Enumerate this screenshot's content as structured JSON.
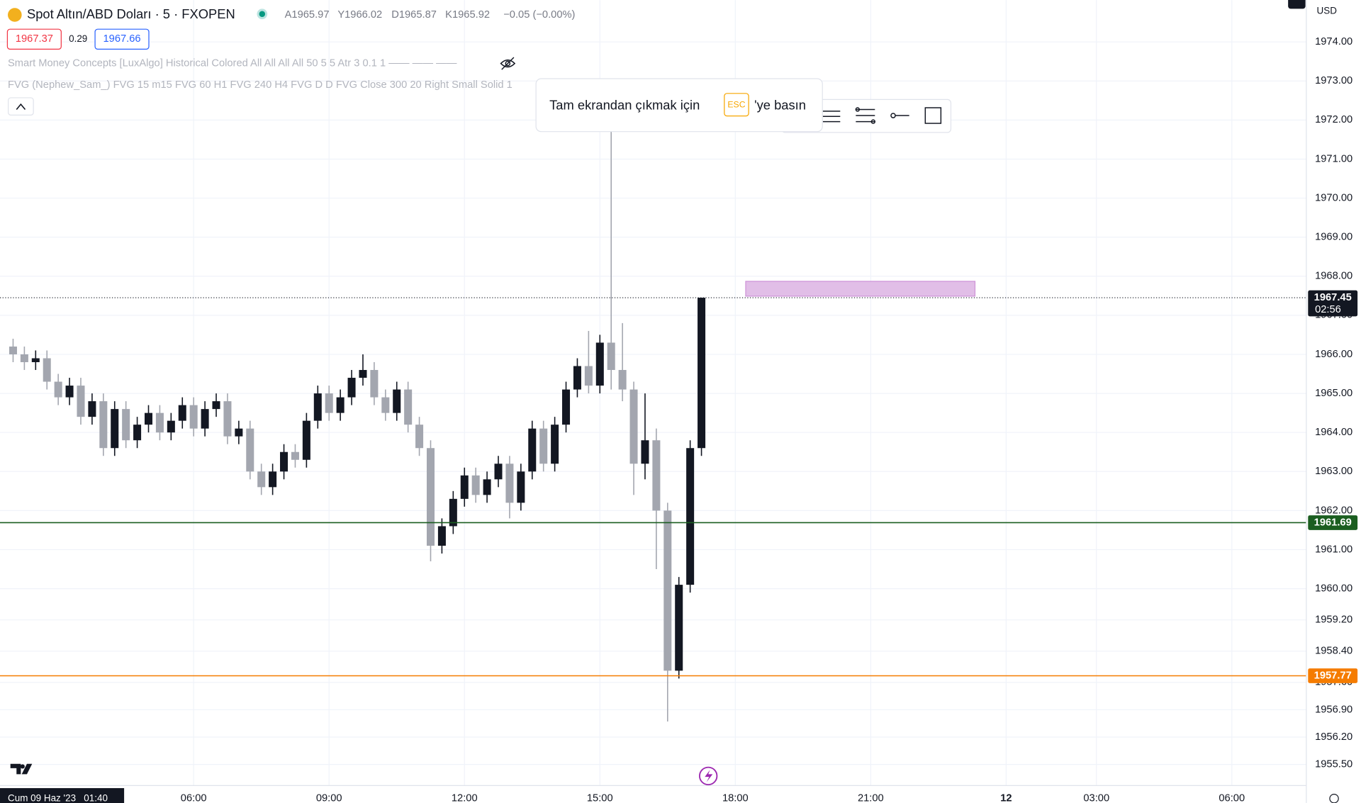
{
  "header": {
    "symbol": "Spot Altın/ABD Doları · 5 · FXOPEN",
    "ohlc": [
      "A1965.97",
      "Y1966.02",
      "D1965.87",
      "K1965.92",
      "−0.05 (−0.00%)"
    ],
    "sell": "1967.37",
    "spread": "0.29",
    "buy": "1967.66",
    "indicators": [
      "Smart Money Concepts [LuxAlgo] Historical Colored All All All All 50 5 5 Atr 3 0.1 1 —— —— ——",
      "FVG (Nephew_Sam_) FVG 15 m15 FVG 60 H1 FVG 240 H4 FVG D D FVG Close 300 20 Right Small Solid 1"
    ],
    "currency": "USD"
  },
  "tooltip": {
    "before": "Tam ekrandan çıkmak için",
    "key": "ESC",
    "after": "'ye basın"
  },
  "footer": {
    "cursor_time": "Cum 09 Haz '23   01:40"
  },
  "chart_data": {
    "type": "candlestick",
    "up_color": "#131722",
    "down_color": "#a3a6af",
    "x": [
      2,
      2.25,
      2.5,
      2.75,
      3,
      3.25,
      3.5,
      3.75,
      4,
      4.25,
      4.5,
      4.75,
      5,
      5.25,
      5.5,
      5.75,
      6,
      6.25,
      6.5,
      6.75,
      7,
      7.25,
      7.5,
      7.75,
      8,
      8.25,
      8.5,
      8.75,
      9,
      9.25,
      9.5,
      9.75,
      10,
      10.25,
      10.5,
      10.75,
      11,
      11.25,
      11.5,
      11.75,
      12,
      12.25,
      12.5,
      12.75,
      13,
      13.25,
      13.5,
      13.75,
      14,
      14.25,
      14.5,
      14.75,
      15,
      15.25,
      15.5,
      15.75,
      16,
      16.25,
      16.5,
      16.75,
      17,
      17.25
    ],
    "open": [
      1966.2,
      1966.0,
      1965.8,
      1965.9,
      1965.3,
      1964.9,
      1965.2,
      1964.4,
      1964.8,
      1963.6,
      1964.6,
      1963.8,
      1964.2,
      1964.5,
      1964.0,
      1964.3,
      1964.7,
      1964.1,
      1964.6,
      1964.8,
      1963.9,
      1964.1,
      1963.0,
      1962.6,
      1963.0,
      1963.5,
      1963.3,
      1964.3,
      1965.0,
      1964.5,
      1964.9,
      1965.4,
      1965.6,
      1964.9,
      1964.5,
      1965.1,
      1964.2,
      1963.6,
      1961.1,
      1961.6,
      1962.3,
      1962.9,
      1962.4,
      1962.8,
      1963.2,
      1962.2,
      1963.0,
      1964.1,
      1963.2,
      1964.2,
      1965.1,
      1965.7,
      1965.2,
      1966.3,
      1965.6,
      1965.1,
      1963.2,
      1963.8,
      1962.0,
      1957.9,
      1960.1,
      1963.6
    ],
    "high": [
      1966.4,
      1966.2,
      1966.1,
      1966.1,
      1965.5,
      1965.4,
      1965.4,
      1965.0,
      1965.0,
      1964.8,
      1964.8,
      1964.4,
      1964.7,
      1964.7,
      1964.5,
      1964.9,
      1964.9,
      1964.8,
      1965.0,
      1965.0,
      1964.3,
      1964.3,
      1963.2,
      1963.2,
      1963.7,
      1963.7,
      1964.5,
      1965.2,
      1965.2,
      1965.1,
      1965.6,
      1966.0,
      1965.8,
      1965.1,
      1965.3,
      1965.3,
      1964.4,
      1963.8,
      1961.8,
      1962.5,
      1963.1,
      1963.1,
      1963.0,
      1963.4,
      1963.4,
      1963.2,
      1964.3,
      1964.3,
      1964.4,
      1965.3,
      1965.9,
      1966.6,
      1966.5,
      1971.8,
      1966.8,
      1965.3,
      1965.0,
      1964.1,
      1962.2,
      1960.3,
      1963.8,
      1967.45
    ],
    "low": [
      1965.8,
      1965.6,
      1965.6,
      1965.1,
      1964.7,
      1964.7,
      1964.2,
      1964.2,
      1963.4,
      1963.4,
      1963.6,
      1963.6,
      1964.0,
      1963.8,
      1963.8,
      1964.1,
      1963.9,
      1963.9,
      1964.4,
      1963.7,
      1963.7,
      1962.8,
      1962.4,
      1962.4,
      1962.8,
      1963.1,
      1963.1,
      1964.1,
      1964.3,
      1964.3,
      1964.7,
      1965.2,
      1964.7,
      1964.3,
      1964.3,
      1964.0,
      1963.4,
      1960.7,
      1960.9,
      1961.4,
      1962.1,
      1962.2,
      1962.2,
      1962.6,
      1961.8,
      1962.0,
      1962.8,
      1963.0,
      1963.0,
      1964.0,
      1964.9,
      1965.0,
      1965.0,
      1965.1,
      1964.8,
      1962.4,
      1962.8,
      1960.5,
      1956.6,
      1957.7,
      1959.9,
      1963.4
    ],
    "close": [
      1966.0,
      1965.8,
      1965.9,
      1965.3,
      1964.9,
      1965.2,
      1964.4,
      1964.8,
      1963.6,
      1964.6,
      1963.8,
      1964.2,
      1964.5,
      1964.0,
      1964.3,
      1964.7,
      1964.1,
      1964.6,
      1964.8,
      1963.9,
      1964.1,
      1963.0,
      1962.6,
      1963.0,
      1963.5,
      1963.3,
      1964.3,
      1965.0,
      1964.5,
      1964.9,
      1965.4,
      1965.6,
      1964.9,
      1964.5,
      1965.1,
      1964.2,
      1963.6,
      1961.1,
      1961.6,
      1962.3,
      1962.9,
      1962.4,
      1962.8,
      1963.2,
      1962.2,
      1963.0,
      1964.1,
      1963.2,
      1964.2,
      1965.1,
      1965.7,
      1965.2,
      1966.3,
      1965.6,
      1965.1,
      1963.2,
      1963.8,
      1962.0,
      1957.9,
      1960.1,
      1963.6,
      1967.45
    ],
    "xlim": [
      1.71,
      30.65
    ],
    "ylim": [
      1954.96,
      1975.07
    ],
    "xticks": [
      {
        "value": 6,
        "label": "06:00"
      },
      {
        "value": 9,
        "label": "09:00"
      },
      {
        "value": 12,
        "label": "12:00"
      },
      {
        "value": 15,
        "label": "15:00"
      },
      {
        "value": 18,
        "label": "18:00"
      },
      {
        "value": 21,
        "label": "21:00"
      },
      {
        "value": 24,
        "label": "12"
      },
      {
        "value": 26,
        "label": "03:00"
      },
      {
        "value": 29,
        "label": "06:00"
      }
    ],
    "yticks": [
      {
        "value": 1974,
        "label": "1974.00"
      },
      {
        "value": 1973,
        "label": "1973.00"
      },
      {
        "value": 1972,
        "label": "1972.00"
      },
      {
        "value": 1971,
        "label": "1971.00"
      },
      {
        "value": 1970,
        "label": "1970.00"
      },
      {
        "value": 1969,
        "label": "1969.00"
      },
      {
        "value": 1968,
        "label": "1968.00"
      },
      {
        "value": 1967,
        "label": "1967.00"
      },
      {
        "value": 1966,
        "label": "1966.00"
      },
      {
        "value": 1965,
        "label": "1965.00"
      },
      {
        "value": 1964,
        "label": "1964.00"
      },
      {
        "value": 1963,
        "label": "1963.00"
      },
      {
        "value": 1962,
        "label": "1962.00"
      },
      {
        "value": 1961,
        "label": "1961.00"
      },
      {
        "value": 1960,
        "label": "1960.00"
      },
      {
        "value": 1959.2,
        "label": "1959.20"
      },
      {
        "value": 1958.4,
        "label": "1958.40"
      },
      {
        "value": 1957.6,
        "label": "1957.60"
      },
      {
        "value": 1956.9,
        "label": "1956.90"
      },
      {
        "value": 1956.2,
        "label": "1956.20"
      },
      {
        "value": 1955.5,
        "label": "1955.50"
      }
    ],
    "grid": true,
    "price_lines": [
      {
        "value": 1967.45,
        "color": "#131722",
        "style": "dotted",
        "countdown": "02:56"
      },
      {
        "value": 1961.69,
        "color": "#1b5e20",
        "style": "solid"
      },
      {
        "value": 1957.77,
        "color": "#f57c00",
        "style": "solid"
      }
    ],
    "zones": [
      {
        "x": [
          18.23,
          23.31
        ],
        "y": [
          1967.49,
          1967.87
        ],
        "color": "#e1bee7",
        "border": "#ce93d8"
      }
    ]
  }
}
